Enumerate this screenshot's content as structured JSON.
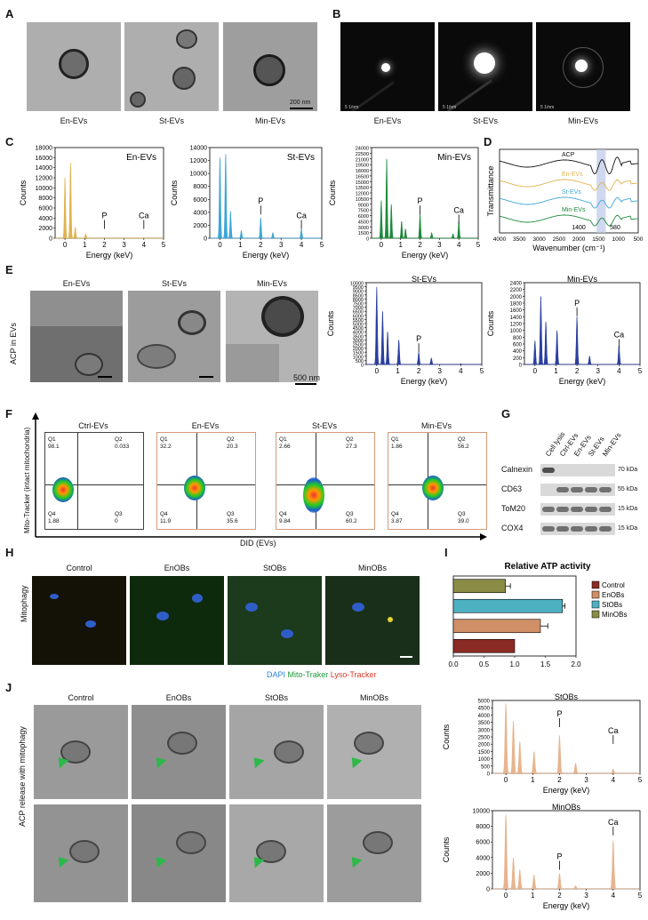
{
  "panels": {
    "A": "A",
    "B": "B",
    "C": "C",
    "D": "D",
    "E": "E",
    "F": "F",
    "G": "G",
    "H": "H",
    "I": "I",
    "J": "J"
  },
  "panelA": {
    "labels": [
      "En-EVs",
      "St-EVs",
      "Min-EVs"
    ],
    "scalebar": "200 nm"
  },
  "panelB": {
    "labels": [
      "En-EVs",
      "St-EVs",
      "Min-EVs"
    ],
    "scale_text": "5 1/nm"
  },
  "panelE": {
    "labels": [
      "En-EVs",
      "St-EVs",
      "Min-EVs"
    ],
    "ylabel": "ACP in EVs",
    "scalebar": "500 nm"
  },
  "panelF": {
    "labels": [
      "Ctrl-EVs",
      "En-EVs",
      "St-EVs",
      "Min-EVs"
    ],
    "ylabel": "Mito-Tracker (intact mitochondria)",
    "xlabel": "DID (EVs)",
    "quads": [
      [
        "Q1",
        "Q2",
        "Q3",
        "Q4"
      ]
    ],
    "values": [
      [
        "98.1",
        "0.033",
        "0",
        "1.88"
      ],
      [
        "32.2",
        "20.3",
        "35.6",
        "11.9"
      ],
      [
        "2.66",
        "27.3",
        "60.2",
        "9.84"
      ],
      [
        "1.86",
        "56.2",
        "39.0",
        "3.87"
      ]
    ]
  },
  "panelG": {
    "columns": [
      "Cell lysis",
      "Ctrl-EVs",
      "En-EVs",
      "St-EVs",
      "Min-EVs"
    ],
    "rows": [
      "Calnexin",
      "CD63",
      "ToM20",
      "COX4"
    ],
    "kda": [
      "70 kDa",
      "55 kDa",
      "15 kDa",
      "15 kDa"
    ]
  },
  "panelH": {
    "labels": [
      "Control",
      "EnOBs",
      "StOBs",
      "MinOBs"
    ],
    "ylabel": "Mitophagy",
    "legend": [
      "DAPI",
      "Mito-Traker",
      "Lyso-Tracker"
    ]
  },
  "panelJ": {
    "labels": [
      "Control",
      "EnOBs",
      "StOBs",
      "MinOBs"
    ],
    "ylabel": "ACP release with mitophagy"
  },
  "colors": {
    "en": "#e0b24e",
    "st": "#3fa6d6",
    "min": "#1d8a3c",
    "eds_e": "#2b3fa0",
    "eds_j": "#e7b48f",
    "control": "#8b2b25",
    "enobs": "#d08f67",
    "stobs": "#4db1c2",
    "minobs": "#8a8c45"
  },
  "chart_data": [
    {
      "type": "area",
      "title": "En-EVs",
      "xlabel": "Energy (keV)",
      "ylabel": "Counts",
      "xlim": [
        -0.5,
        5
      ],
      "ylim": [
        0,
        18000
      ],
      "yticks": [
        "0",
        "2000",
        "4000",
        "6000",
        "8000",
        "10000",
        "12000",
        "14000",
        "16000",
        "18000"
      ],
      "xticks": [
        "0",
        "1",
        "2",
        "3",
        "4",
        "5"
      ],
      "peaks": [
        [
          0.0,
          12000
        ],
        [
          0.28,
          15000
        ],
        [
          0.52,
          2200
        ],
        [
          1.05,
          900
        ]
      ],
      "annotations": [
        "P",
        "Ca"
      ],
      "annotation_x": [
        2.0,
        4.0
      ]
    },
    {
      "type": "area",
      "title": "St-EVs",
      "xlabel": "Energy (keV)",
      "ylabel": "Counts",
      "xlim": [
        -0.5,
        5
      ],
      "ylim": [
        0,
        14000
      ],
      "yticks": [
        "0",
        "2000",
        "4000",
        "6000",
        "8000",
        "10000",
        "12000",
        "14000"
      ],
      "xticks": [
        "0",
        "1",
        "2",
        "3",
        "4",
        "5"
      ],
      "peaks": [
        [
          0.0,
          12500
        ],
        [
          0.28,
          13000
        ],
        [
          0.52,
          4200
        ],
        [
          1.05,
          1200
        ],
        [
          2.0,
          3200
        ],
        [
          2.6,
          900
        ],
        [
          4.0,
          1500
        ]
      ],
      "annotations": [
        "P",
        "Ca"
      ],
      "annotation_x": [
        2.0,
        4.0
      ]
    },
    {
      "type": "area",
      "title": "Min-EVs",
      "xlabel": "Energy (keV)",
      "ylabel": "Counts",
      "xlim": [
        -0.5,
        5
      ],
      "ylim": [
        0,
        24000
      ],
      "yticks": [
        "0",
        "1500",
        "3000",
        "4500",
        "6000",
        "7500",
        "9000",
        "10500",
        "12000",
        "13500",
        "15000",
        "16500",
        "18000",
        "19500",
        "21000",
        "22500",
        "24000"
      ],
      "xticks": [
        "0",
        "1",
        "2",
        "3",
        "4",
        "5"
      ],
      "peaks": [
        [
          0.0,
          10000
        ],
        [
          0.28,
          21000
        ],
        [
          0.52,
          9000
        ],
        [
          1.05,
          4500
        ],
        [
          1.25,
          2500
        ],
        [
          2.0,
          6500
        ],
        [
          2.6,
          1500
        ],
        [
          3.7,
          1200
        ],
        [
          4.0,
          4500
        ]
      ],
      "annotations": [
        "P",
        "Ca"
      ],
      "annotation_x": [
        2.0,
        4.0
      ]
    },
    {
      "type": "line",
      "title": "",
      "xlabel": "Wavenumber (cm⁻¹)",
      "ylabel": "Transmittance",
      "xlim": [
        4000,
        500
      ],
      "xticks": [
        "4000",
        "3500",
        "3000",
        "2500",
        "2000",
        "1500",
        "1000",
        "500"
      ],
      "series": [
        {
          "name": "ACP"
        },
        {
          "name": "En-EVs"
        },
        {
          "name": "St-EVs"
        },
        {
          "name": "Min-EVs"
        }
      ],
      "annotations": [
        "1400",
        "580"
      ]
    },
    {
      "type": "area",
      "title": "St-EVs",
      "xlabel": "Energy (keV)",
      "ylabel": "Counts",
      "xlim": [
        -0.5,
        5
      ],
      "ylim": [
        0,
        10000
      ],
      "yticks": [
        "0",
        "500",
        "1000",
        "1500",
        "2000",
        "2500",
        "3000",
        "3500",
        "4000",
        "4500",
        "5000",
        "5500",
        "6000",
        "6500",
        "7000",
        "7500",
        "8000",
        "8500",
        "9000",
        "9500",
        "10000"
      ],
      "xticks": [
        "0",
        "1",
        "2",
        "3",
        "4",
        "5"
      ],
      "peaks": [
        [
          0.0,
          9500
        ],
        [
          0.28,
          6500
        ],
        [
          0.52,
          4000
        ],
        [
          1.05,
          3000
        ],
        [
          2.0,
          1500
        ],
        [
          2.6,
          800
        ],
        [
          4.0,
          100
        ]
      ],
      "annotations": [
        "P"
      ],
      "annotation_x": [
        2.0
      ]
    },
    {
      "type": "area",
      "title": "Min-EVs",
      "xlabel": "Energy (keV)",
      "ylabel": "Counts",
      "xlim": [
        -0.5,
        5
      ],
      "ylim": [
        0,
        2400
      ],
      "yticks": [
        "0",
        "200",
        "400",
        "600",
        "800",
        "1000",
        "1200",
        "1400",
        "1600",
        "1800",
        "2000",
        "2200",
        "2400"
      ],
      "xticks": [
        "0",
        "1",
        "2",
        "3",
        "4",
        "5"
      ],
      "peaks": [
        [
          0.0,
          700
        ],
        [
          0.28,
          2000
        ],
        [
          0.52,
          1250
        ],
        [
          1.05,
          1000
        ],
        [
          2.0,
          1400
        ],
        [
          2.6,
          250
        ],
        [
          4.0,
          550
        ]
      ],
      "annotations": [
        "P",
        "Ca"
      ],
      "annotation_x": [
        2.0,
        4.0
      ]
    },
    {
      "type": "bar",
      "title": "Relative ATP activity",
      "orientation": "horizontal",
      "xlim": [
        0,
        2.0
      ],
      "xticks": [
        "0.0",
        "0.5",
        "1.0",
        "1.5",
        "2.0"
      ],
      "categories": [
        "Control",
        "EnOBs",
        "StOBs",
        "MinOBs"
      ],
      "values": [
        1.0,
        1.42,
        1.78,
        0.85
      ],
      "errors": [
        0.0,
        0.12,
        0.04,
        0.08
      ]
    },
    {
      "type": "area",
      "title": "StOBs",
      "xlabel": "Energy (keV)",
      "ylabel": "Counts",
      "xlim": [
        -0.5,
        5
      ],
      "ylim": [
        0,
        5000
      ],
      "yticks": [
        "0",
        "500",
        "1000",
        "1500",
        "2000",
        "2500",
        "3000",
        "3500",
        "4000",
        "4500",
        "5000"
      ],
      "xticks": [
        "0",
        "1",
        "2",
        "3",
        "4",
        "5"
      ],
      "peaks": [
        [
          0.0,
          4800
        ],
        [
          0.28,
          3600
        ],
        [
          0.52,
          2200
        ],
        [
          1.05,
          1500
        ],
        [
          2.0,
          2600
        ],
        [
          2.6,
          700
        ],
        [
          4.0,
          300
        ]
      ],
      "annotations": [
        "P",
        "Ca"
      ],
      "annotation_x": [
        2.0,
        4.0
      ]
    },
    {
      "type": "area",
      "title": "MinOBs",
      "xlabel": "Energy (keV)",
      "ylabel": "Counts",
      "xlim": [
        -0.5,
        5
      ],
      "ylim": [
        0,
        10000
      ],
      "yticks": [
        "0",
        "2000",
        "4000",
        "6000",
        "8000",
        "10000"
      ],
      "xticks": [
        "0",
        "1",
        "2",
        "3",
        "4",
        "5"
      ],
      "peaks": [
        [
          0.0,
          9500
        ],
        [
          0.28,
          4000
        ],
        [
          0.52,
          2500
        ],
        [
          1.05,
          1800
        ],
        [
          2.0,
          2000
        ],
        [
          2.6,
          400
        ],
        [
          4.0,
          6200
        ]
      ],
      "annotations": [
        "P",
        "Ca"
      ],
      "annotation_x": [
        2.0,
        4.0
      ]
    }
  ]
}
